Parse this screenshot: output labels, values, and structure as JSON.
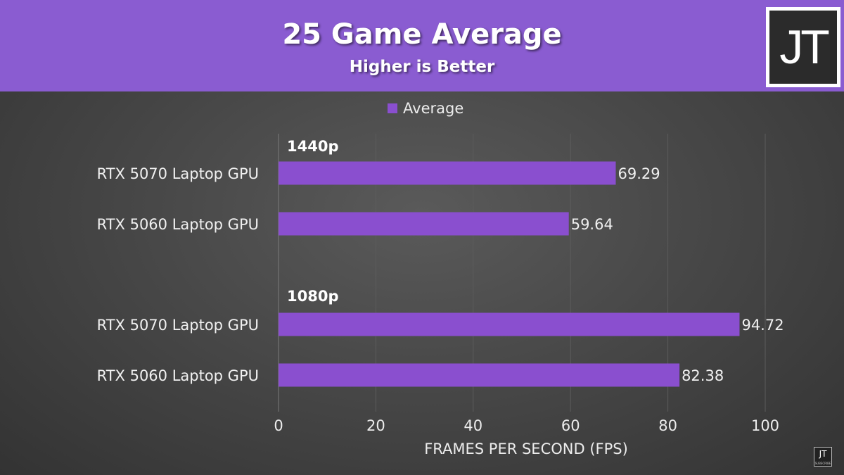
{
  "header": {
    "title": "25 Game Average",
    "subtitle": "Higher is Better",
    "logo_text": "JT"
  },
  "watermark": {
    "text": "JT",
    "sub": "SUBSCRIBE"
  },
  "colors": {
    "header_bg": "#8a5cd1",
    "bar": "#8a4fcf",
    "background": "#484848"
  },
  "chart_data": {
    "type": "bar",
    "orientation": "horizontal",
    "title": "25 Game Average",
    "subtitle": "Higher is Better",
    "xlabel": "FRAMES PER SECOND (FPS)",
    "ylabel": "",
    "xlim": [
      0,
      100
    ],
    "xticks": [
      0,
      20,
      40,
      60,
      80,
      100
    ],
    "grid": true,
    "legend": {
      "position": "top",
      "entries": [
        "Average"
      ]
    },
    "groups": [
      {
        "label": "1440p",
        "categories": [
          "RTX 5070 Laptop GPU",
          "RTX 5060 Laptop GPU"
        ],
        "values": [
          69.29,
          59.64
        ],
        "value_labels": [
          "69.29",
          "59.64"
        ]
      },
      {
        "label": "1080p",
        "categories": [
          "RTX 5070 Laptop GPU",
          "RTX 5060 Laptop GPU"
        ],
        "values": [
          94.72,
          82.38
        ],
        "value_labels": [
          "94.72",
          "82.38"
        ]
      }
    ],
    "series": [
      {
        "name": "Average",
        "values": [
          69.29,
          59.64,
          94.72,
          82.38
        ]
      }
    ]
  }
}
